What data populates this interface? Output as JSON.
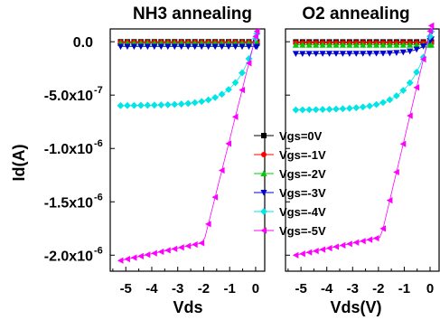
{
  "chart_data": {
    "type": "scatter",
    "ylabel": "Id(A)",
    "ylim": [
      -2.15e-06,
      1.2e-07
    ],
    "y_ticks": [
      {
        "value": 0,
        "label": "0.0"
      },
      {
        "value": -5e-07,
        "label": "-5.0x10",
        "exp": "-7"
      },
      {
        "value": -1e-06,
        "label": "-1.0x10",
        "exp": "-6"
      },
      {
        "value": -1.5e-06,
        "label": "-1.5x10",
        "exp": "-6"
      },
      {
        "value": -2e-06,
        "label": "-2.0x10",
        "exp": "-6"
      }
    ],
    "x_ticks": [
      {
        "value": -5,
        "label": "-5"
      },
      {
        "value": -4,
        "label": "-4"
      },
      {
        "value": -3,
        "label": "-3"
      },
      {
        "value": -2,
        "label": "-2"
      },
      {
        "value": -1,
        "label": "-1"
      },
      {
        "value": 0,
        "label": "0"
      }
    ],
    "legend_position": "center",
    "panels": [
      {
        "title": "NH3 annealing",
        "xlabel": "Vds",
        "xlim": [
          -5.6,
          0.35
        ],
        "series": [
          {
            "name": "Vgs=0V",
            "color": "#000000",
            "marker": "square",
            "kind": "flat",
            "sat": -1e-09,
            "k": 0
          },
          {
            "name": "Vgs=-1V",
            "color": "#ff0000",
            "marker": "circle",
            "kind": "flat",
            "sat": -5e-09,
            "k": 0
          },
          {
            "name": "Vgs=-2V",
            "color": "#00cc00",
            "marker": "triangle-up",
            "kind": "flat",
            "sat": -1.5e-08,
            "k": 0
          },
          {
            "name": "Vgs=-3V",
            "color": "#0000cc",
            "marker": "triangle-down",
            "kind": "flat",
            "sat": -4.5e-08,
            "k": 0
          },
          {
            "name": "Vgs=-4V",
            "color": "#00e5e5",
            "marker": "diamond",
            "kind": "knee",
            "sat": -5.9e-07,
            "k": 1.4,
            "end": 3e-08
          },
          {
            "name": "Vgs=-5V",
            "color": "#ff00ff",
            "marker": "triangle-left",
            "kind": "lin",
            "sat": -2.05e-06,
            "knee": -2.0,
            "end": 5e-08
          }
        ]
      },
      {
        "title": "O2 annealing",
        "xlabel": "Vds(V)",
        "xlim": [
          -5.6,
          0.35
        ],
        "series": [
          {
            "name": "Vgs=0V",
            "color": "#000000",
            "marker": "square",
            "kind": "flat",
            "sat": -2e-09,
            "k": 0
          },
          {
            "name": "Vgs=-1V",
            "color": "#ff0000",
            "marker": "circle",
            "kind": "flat",
            "sat": -1e-08,
            "k": 0
          },
          {
            "name": "Vgs=-2V",
            "color": "#00cc00",
            "marker": "triangle-up",
            "kind": "flat",
            "sat": -3e-08,
            "k": 0
          },
          {
            "name": "Vgs=-3V",
            "color": "#0000cc",
            "marker": "triangle-down",
            "kind": "knee",
            "sat": -1.1e-07,
            "k": 2.2,
            "end": 1e-08
          },
          {
            "name": "Vgs=-4V",
            "color": "#00e5e5",
            "marker": "diamond",
            "kind": "knee",
            "sat": -6.3e-07,
            "k": 1.3,
            "end": 5e-08
          },
          {
            "name": "Vgs=-5V",
            "color": "#ff00ff",
            "marker": "triangle-left",
            "kind": "lin",
            "sat": -2e-06,
            "knee": -1.9,
            "end": 1e-07
          }
        ]
      }
    ]
  }
}
